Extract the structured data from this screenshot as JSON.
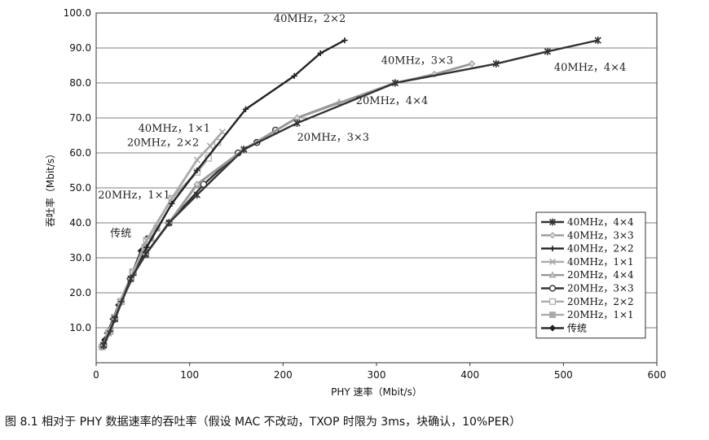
{
  "caption": "图 8.1   相对于 PHY 数据速率的吞吐率（假设 MAC 不改动，TXOP 时限为 3ms，块确认，10%PER）",
  "chart_data": {
    "type": "line",
    "title": "",
    "xlabel": "PHY 速率（Mbit/s）",
    "ylabel": "吞吐率（Mbit/s）",
    "xlim": [
      0,
      600
    ],
    "ylim": [
      0,
      100
    ],
    "x_ticks": [
      "0",
      "100",
      "200",
      "300",
      "400",
      "500",
      "600"
    ],
    "y_ticks": [
      "10.0",
      "20.0",
      "30.0",
      "40.0",
      "50.0",
      "60.0",
      "70.0",
      "80.0",
      "90.0",
      "100.0"
    ],
    "grid": "horizontal",
    "legend_position": "bottom-right",
    "series": [
      {
        "name": "40MHz，4×4",
        "color": "#333333",
        "marker": "star",
        "x": [
          8,
          20,
          37,
          53,
          78,
          108,
          158,
          215,
          320,
          428,
          483,
          537
        ],
        "y": [
          5,
          12.5,
          24,
          31,
          40,
          48,
          61,
          68.5,
          80,
          85.5,
          89,
          92.2
        ]
      },
      {
        "name": "40MHz，3×3",
        "color": "#999999",
        "marker": "diamond",
        "x": [
          8,
          20,
          37,
          53,
          78,
          108,
          158,
          215,
          320,
          362,
          402
        ],
        "y": [
          5,
          12.5,
          24,
          31,
          40,
          51,
          61,
          70,
          80,
          82.5,
          85.5
        ]
      },
      {
        "name": "40MHz，2×2",
        "color": "#222222",
        "marker": "plus",
        "x": [
          8,
          15,
          27,
          40,
          54,
          81,
          108,
          160,
          212,
          240,
          266
        ],
        "y": [
          5,
          9,
          17.5,
          25,
          33,
          45.5,
          55,
          72.5,
          82,
          88.5,
          92.2
        ]
      },
      {
        "name": "40MHz，1×1",
        "color": "#aaaaaa",
        "marker": "x",
        "x": [
          8,
          15,
          27,
          40,
          54,
          81,
          108,
          122,
          135
        ],
        "y": [
          5,
          9,
          17.5,
          26,
          35,
          47,
          58,
          62,
          66
        ]
      },
      {
        "name": "20MHz，4×4",
        "color": "#999999",
        "marker": "triangle",
        "x": [
          8,
          20,
          37,
          53,
          78,
          108,
          158,
          215,
          260
        ],
        "y": [
          5,
          12.5,
          24,
          31,
          40,
          51,
          61,
          70,
          74.5
        ]
      },
      {
        "name": "20MHz，3×3",
        "color": "#333333",
        "marker": "circle",
        "x": [
          8,
          20,
          37,
          53,
          78,
          115,
          152,
          172,
          192
        ],
        "y": [
          5,
          12.5,
          24,
          31,
          40,
          51,
          60,
          63,
          66.5
        ]
      },
      {
        "name": "20MHz，2×2",
        "color": "#aaaaaa",
        "marker": "square-open",
        "x": [
          8,
          15,
          27,
          40,
          54,
          81,
          108,
          120,
          130
        ],
        "y": [
          5,
          9,
          17.5,
          26,
          35,
          47,
          54.5,
          58.5,
          63
        ]
      },
      {
        "name": "20MHz，1×1",
        "color": "#aaaaaa",
        "marker": "square",
        "x": [
          6.5,
          13,
          19.5,
          26,
          39,
          52,
          58.5,
          65
        ],
        "y": [
          4.5,
          8.5,
          13,
          17.5,
          26,
          33,
          35.5,
          38.5
        ]
      },
      {
        "name": "传统",
        "color": "#222222",
        "marker": "diamond-filled",
        "x": [
          6,
          9,
          12,
          18,
          24,
          36,
          48,
          54
        ],
        "y": [
          4.5,
          6.5,
          8.5,
          12.5,
          16.5,
          24,
          32,
          35.5
        ]
      }
    ],
    "annotations": [
      {
        "text": "40MHz，2×2",
        "x": 190,
        "y": 97.5
      },
      {
        "text": "40MHz，3×3",
        "x": 305,
        "y": 85.5
      },
      {
        "text": "40MHz，4×4",
        "x": 490,
        "y": 83.5
      },
      {
        "text": "20MHz，4×4",
        "x": 278,
        "y": 74
      },
      {
        "text": "20MHz，3×3",
        "x": 215,
        "y": 63.5
      },
      {
        "text": "40MHz，1×1",
        "x": 45,
        "y": 66
      },
      {
        "text": "20MHz，2×2",
        "x": 33,
        "y": 62
      },
      {
        "text": "20MHz，1×1",
        "x": 2,
        "y": 47
      },
      {
        "text": "传统",
        "x": 15,
        "y": 36
      }
    ]
  }
}
